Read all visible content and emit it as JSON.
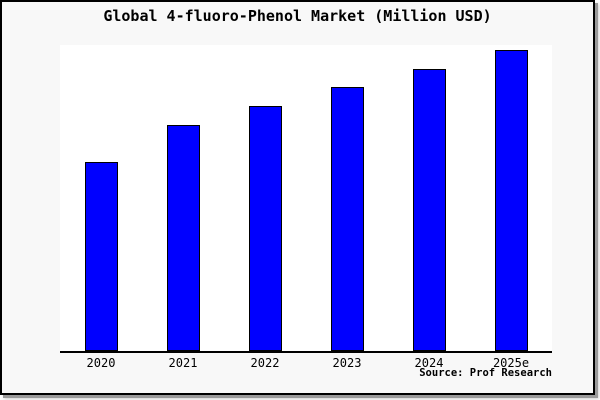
{
  "figure": {
    "title": "Global 4-fluoro-Phenol Market (Million USD)",
    "source_credit": "Source: Prof Research"
  },
  "colors": {
    "bar_fill": "#0000ff",
    "bar_border": "#000000",
    "figure_background": "#f8f8f8",
    "plot_background": "#ffffff",
    "axis_line": "#000000",
    "text": "#000000"
  },
  "chart_data": {
    "type": "bar",
    "title": "Global 4-fluoro-Phenol Market (Million USD)",
    "categories": [
      "2020",
      "2021",
      "2022",
      "2023",
      "2024",
      "2025e"
    ],
    "values": [
      189,
      226,
      245,
      264,
      282,
      301
    ],
    "series_note": "y-axis has no tick labels in the image; values are relative heights estimated from pixels",
    "xlabel": "",
    "ylabel": "",
    "ylim": [
      0,
      306
    ],
    "grid": false,
    "legend": false,
    "source": "Source: Prof Research"
  }
}
